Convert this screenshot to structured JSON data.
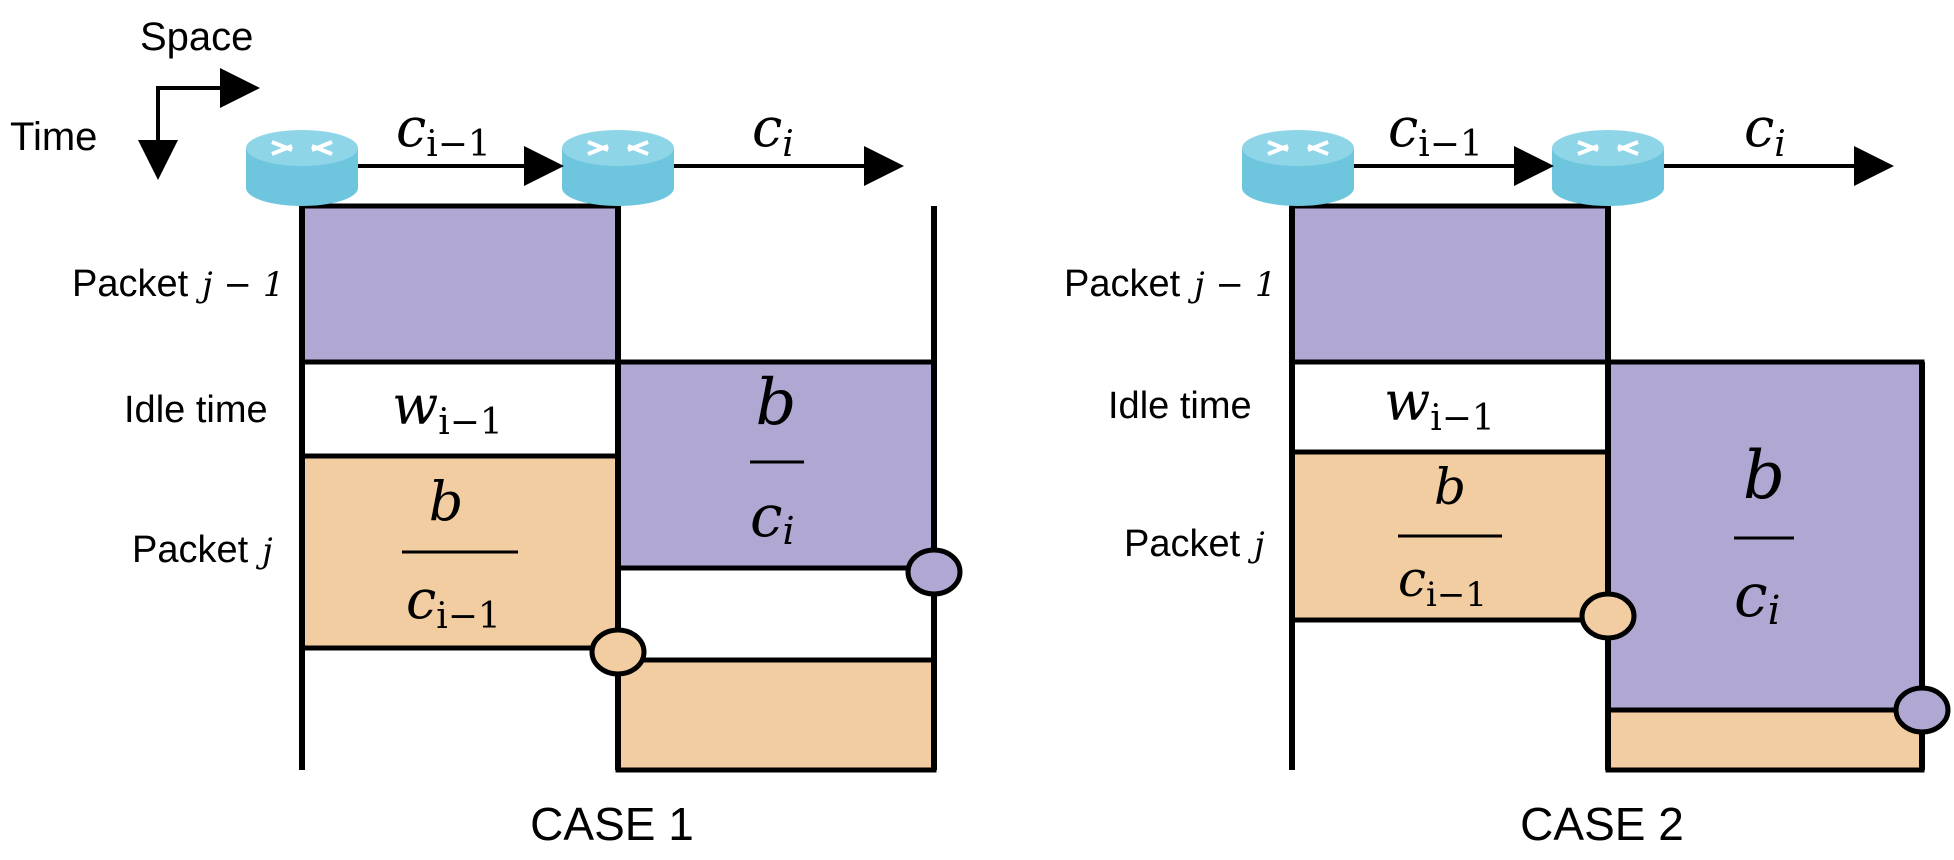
{
  "axes": {
    "space_label": "Space",
    "time_label": "Time"
  },
  "colors": {
    "purple": "#b0a7d3",
    "orange": "#f3cda2",
    "router": "#6dc6de",
    "router_top": "#8fd5e8",
    "line": "#000000"
  },
  "symbols": {
    "c": "c",
    "w": "w",
    "b": "b",
    "i": "i",
    "i_minus_1": "i−1",
    "j": "j",
    "j_minus_1": "j − 1"
  },
  "rows": {
    "packet_prefix": "Packet",
    "idle_time": "Idle time"
  },
  "cases": [
    {
      "title": "CASE 1"
    },
    {
      "title": "CASE 2"
    }
  ]
}
